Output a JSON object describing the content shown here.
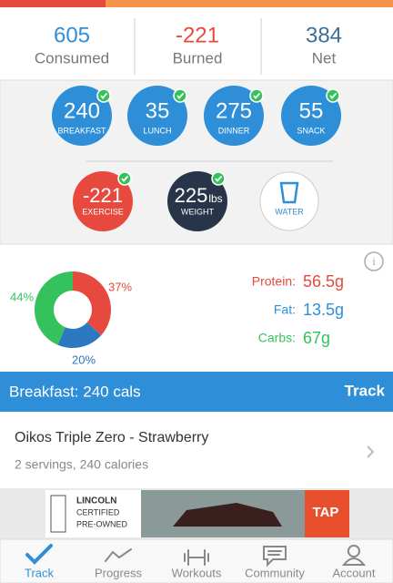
{
  "summary": [
    {
      "value": "605",
      "label": "Consumed"
    },
    {
      "value": "-221",
      "label": "Burned"
    },
    {
      "value": "384",
      "label": "Net"
    }
  ],
  "meals": [
    {
      "value": "240",
      "label": "BREAKFAST"
    },
    {
      "value": "35",
      "label": "LUNCH"
    },
    {
      "value": "275",
      "label": "DINNER"
    },
    {
      "value": "55",
      "label": "SNACK"
    }
  ],
  "activity": {
    "exercise": {
      "value": "-221",
      "label": "EXERCISE"
    },
    "weight": {
      "value": "225",
      "unit": "lbs",
      "label": "WEIGHT"
    },
    "water": {
      "label": "WATER"
    }
  },
  "chart_data": {
    "type": "pie",
    "categories": [
      "Protein",
      "Fat",
      "Carbs"
    ],
    "values": [
      37,
      20,
      44
    ],
    "value_labels": [
      "37%",
      "20%",
      "44%"
    ],
    "colors": [
      "#e8493f",
      "#2c79c1",
      "#35c25d"
    ]
  },
  "macros": [
    {
      "name": "Protein:",
      "amount": "56.5g"
    },
    {
      "name": "Fat:",
      "amount": "13.5g"
    },
    {
      "name": "Carbs:",
      "amount": "67g"
    }
  ],
  "meal_header": {
    "title": "Breakfast: 240 cals",
    "action": "Track"
  },
  "food": {
    "name": "Oikos Triple Zero - Strawberry",
    "detail": "2 servings, 240 calories"
  },
  "ad": {
    "brand": "LINCOLN",
    "line1": "CERTIFIED",
    "line2": "PRE-OWNED",
    "cta": "TAP"
  },
  "tabs": [
    "Track",
    "Progress",
    "Workouts",
    "Community",
    "Account"
  ]
}
